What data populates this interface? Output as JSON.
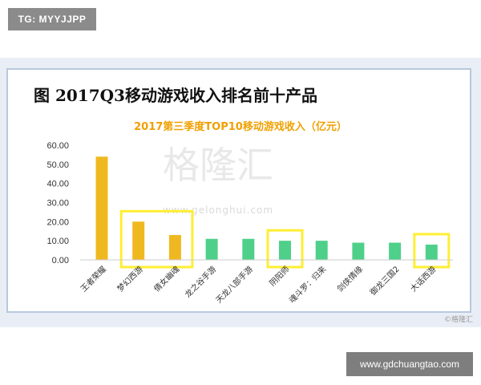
{
  "overlay": {
    "top_left_badge": "TG: MYYJJPP",
    "bottom_right_badge": "www.gdchuangtao.com"
  },
  "slide": {
    "title": "图 2017Q3移动游戏收入排名前十产品"
  },
  "watermark": {
    "main": "格隆汇",
    "url": "www.gelonghui.com",
    "corner": "©格隆汇"
  },
  "colors": {
    "gold": "#f0b820",
    "green": "#4ed08a",
    "highlight_box": "#ffee33",
    "title_orange": "#f0a000"
  },
  "chart_data": {
    "type": "bar",
    "title": "2017第三季度TOP10移动游戏收入（亿元）",
    "xlabel": "",
    "ylabel": "",
    "ylim": [
      0,
      60
    ],
    "yticks": [
      "0.00",
      "10.00",
      "20.00",
      "30.00",
      "40.00",
      "50.00",
      "60.00"
    ],
    "grid": false,
    "legend": "none",
    "categories": [
      "王者荣耀",
      "梦幻西游",
      "倩女幽魂",
      "龙之谷手游",
      "天龙八部手游",
      "阴阳师",
      "魂斗罗：归来",
      "剑侠情缘",
      "御龙三国2",
      "大话西游"
    ],
    "values": [
      54,
      20,
      13,
      11,
      11,
      10,
      10,
      9,
      9,
      8
    ],
    "bar_colors": [
      "#f0b820",
      "#f0b820",
      "#f0b820",
      "#4ed08a",
      "#4ed08a",
      "#4ed08a",
      "#4ed08a",
      "#4ed08a",
      "#4ed08a",
      "#4ed08a"
    ],
    "highlighted_groups": [
      [
        1,
        2
      ],
      [
        5
      ],
      [
        9
      ]
    ]
  }
}
